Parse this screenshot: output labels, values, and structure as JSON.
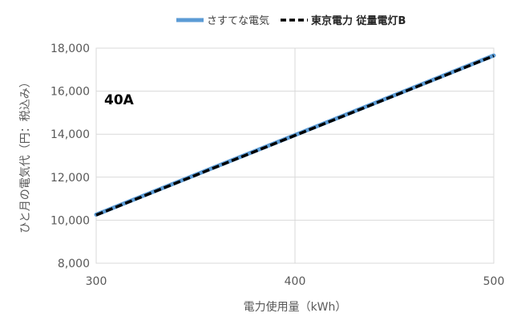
{
  "chart_data": {
    "type": "line",
    "x": [
      300,
      400,
      500
    ],
    "series": [
      {
        "name": "さすてな電気",
        "values": [
          10260,
          13960,
          17660
        ],
        "color": "#5b9bd5",
        "style": "solid"
      },
      {
        "name": "東京電力 従量電灯B",
        "values": [
          10240,
          13940,
          17640
        ],
        "color": "#000000",
        "style": "dashed"
      }
    ],
    "xlabel": "電力使用量（kWh）",
    "ylabel": "ひと月の電気代（円：税込み）",
    "xlim": [
      300,
      500
    ],
    "ylim": [
      8000,
      18000
    ],
    "xticks": [
      300,
      400,
      500
    ],
    "xtick_labels": [
      "300",
      "400",
      "500"
    ],
    "yticks": [
      8000,
      10000,
      12000,
      14000,
      16000,
      18000
    ],
    "ytick_labels": [
      "8,000",
      "10,000",
      "12,000",
      "14,000",
      "16,000",
      "18,000"
    ],
    "annotation": "40A",
    "grid": true,
    "legend_position": "top"
  }
}
